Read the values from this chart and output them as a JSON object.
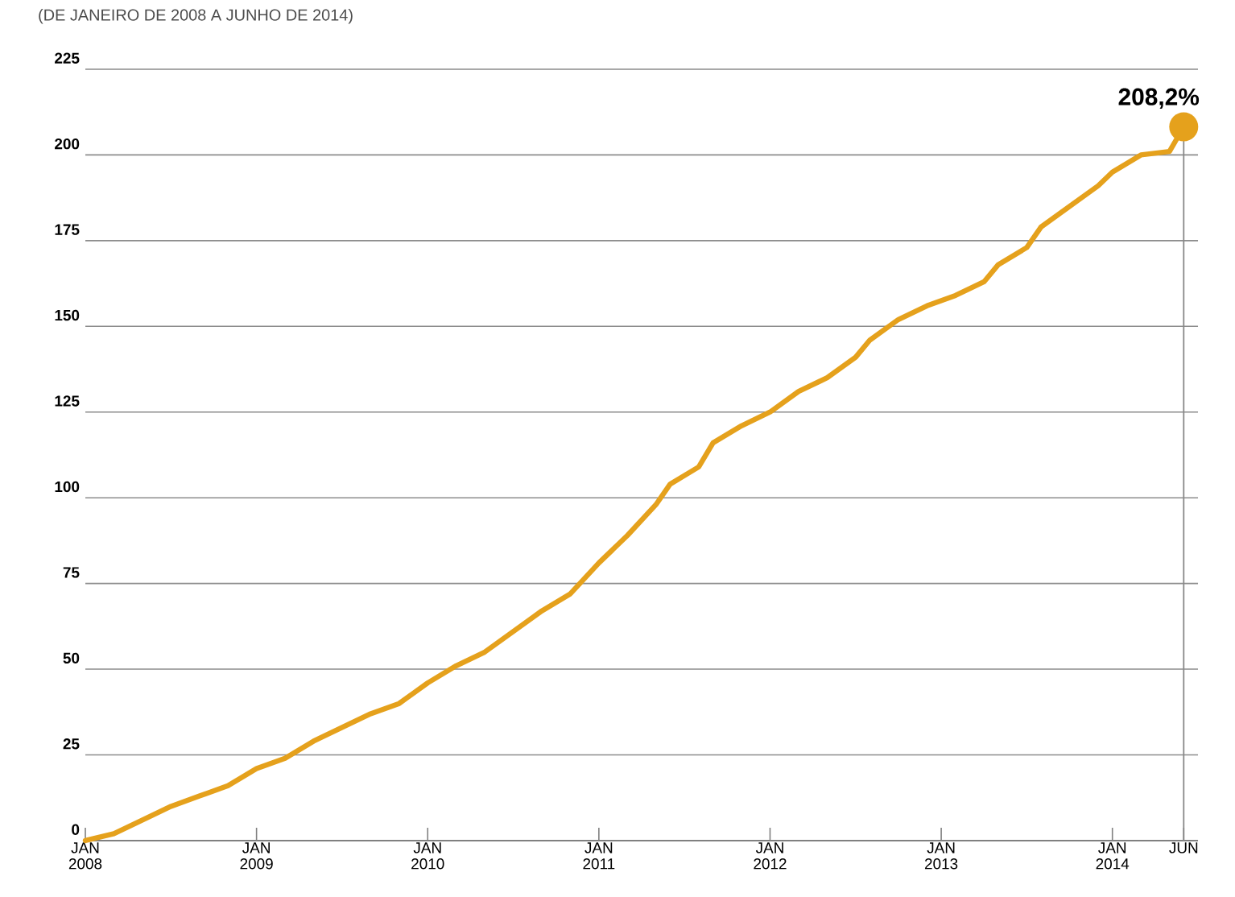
{
  "chart_data": {
    "type": "line",
    "subtitle": "(DE JANEIRO DE 2008 A JUNHO DE 2014)",
    "x": [
      "2008-01",
      "2008-03",
      "2008-05",
      "2008-07",
      "2008-09",
      "2008-11",
      "2009-01",
      "2009-03",
      "2009-05",
      "2009-07",
      "2009-09",
      "2009-11",
      "2010-01",
      "2010-03",
      "2010-05",
      "2010-07",
      "2010-09",
      "2010-11",
      "2011-01",
      "2011-03",
      "2011-05",
      "2011-06",
      "2011-08",
      "2011-09",
      "2011-11",
      "2012-01",
      "2012-03",
      "2012-05",
      "2012-07",
      "2012-08",
      "2012-10",
      "2012-12",
      "2013-02",
      "2013-04",
      "2013-05",
      "2013-07",
      "2013-08",
      "2013-10",
      "2013-12",
      "2014-01",
      "2014-03",
      "2014-05",
      "2014-06"
    ],
    "series": [
      {
        "color": "#e5a11c",
        "values": [
          0,
          2,
          6,
          10,
          13,
          16,
          21,
          24,
          29,
          33,
          37,
          40,
          46,
          51,
          55,
          61,
          67,
          72,
          81,
          89,
          98,
          104,
          109,
          116,
          121,
          125,
          131,
          135,
          141,
          146,
          152,
          156,
          159,
          163,
          168,
          173,
          179,
          185,
          191,
          195,
          200,
          201,
          208.2
        ]
      }
    ],
    "xlim": [
      "2008-01",
      "2014-07"
    ],
    "xticks": [
      {
        "value": "2008-01",
        "label": "JAN 2008"
      },
      {
        "value": "2009-01",
        "label": "JAN 2009"
      },
      {
        "value": "2010-01",
        "label": "JAN 2010"
      },
      {
        "value": "2011-01",
        "label": "JAN 2011"
      },
      {
        "value": "2012-01",
        "label": "JAN 2012"
      },
      {
        "value": "2013-01",
        "label": "JAN 2013"
      },
      {
        "value": "2014-01",
        "label": "JAN 2014"
      },
      {
        "value": "2014-06",
        "label": "JUN"
      }
    ],
    "ylim": [
      0,
      225
    ],
    "yticks": [
      0,
      25,
      50,
      75,
      100,
      125,
      150,
      175,
      200,
      225
    ],
    "grid": "y",
    "marker": "none",
    "line_style": "solid",
    "legend": false,
    "ref_lines": [
      {
        "axis": "x",
        "value": "2014-06",
        "color": "#888888"
      }
    ],
    "annotations": [
      {
        "text": "208,2%",
        "x": "2014-06",
        "y": 208.2
      }
    ]
  }
}
